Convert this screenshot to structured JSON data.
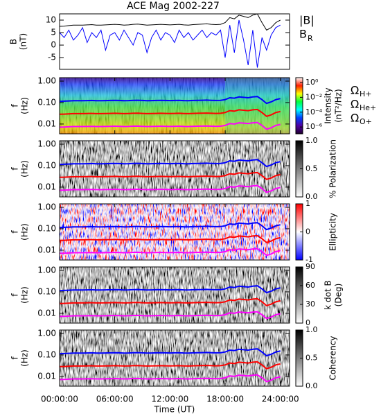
{
  "chart_data": [
    {
      "type": "line",
      "title": "ACE Mag 2002-227",
      "ylabel": [
        "B",
        "(nT)"
      ],
      "x": [
        0,
        0.5,
        1,
        1.5,
        2,
        2.5,
        3,
        3.5,
        4,
        4.5,
        5,
        5.5,
        6,
        6.5,
        7,
        7.5,
        8,
        8.5,
        9,
        9.5,
        10,
        10.5,
        11,
        11.5,
        12,
        12.5,
        13,
        13.5,
        14,
        14.5,
        15,
        15.5,
        16,
        16.5,
        17,
        17.5,
        18,
        18.5,
        19,
        19.5,
        20,
        20.5,
        21,
        21.5,
        22,
        22.5,
        23,
        23.5,
        24
      ],
      "xlim": [
        0,
        25
      ],
      "ylim": [
        -9.7,
        12.5
      ],
      "yticks": [
        10,
        5,
        0,
        -5
      ],
      "series": [
        {
          "name": "|B|",
          "color": "#000000",
          "values": [
            7.5,
            7.6,
            7.8,
            8.0,
            8.0,
            8.0,
            8.1,
            8.2,
            8.0,
            8.0,
            8.1,
            8.2,
            8.3,
            8.2,
            8.0,
            8.1,
            8.3,
            8.4,
            8.2,
            8.0,
            8.1,
            8.2,
            8.3,
            8.2,
            8.1,
            8.2,
            8.3,
            8.1,
            8.0,
            8.2,
            8.3,
            8.4,
            8.5,
            8.3,
            8.2,
            8.3,
            9.0,
            11.0,
            10.5,
            12.0,
            11.5,
            11.0,
            12.0,
            12.5,
            9.0,
            6.0,
            7.0,
            9.0,
            10.0
          ]
        },
        {
          "name": "B",
          "subscript": "R",
          "color": "#0000ff",
          "values": [
            5,
            3,
            6,
            2,
            4,
            7,
            1,
            5,
            3,
            6,
            -2,
            4,
            5,
            2,
            6,
            3,
            0,
            5,
            4,
            -3,
            3,
            6,
            2,
            5,
            4,
            1,
            6,
            3,
            5,
            2,
            4,
            6,
            3,
            5,
            4,
            6,
            -5,
            8,
            -3,
            10,
            2,
            -8,
            6,
            -9,
            3,
            -2,
            4,
            7,
            8
          ]
        }
      ]
    },
    {
      "type": "spectrogram",
      "ylabel": [
        "f",
        "(Hz)"
      ],
      "xlabel": "Time (UT)",
      "x": [
        0,
        0.5,
        1,
        1.5,
        2,
        2.5,
        3,
        3.5,
        4,
        4.5,
        5,
        5.5,
        6,
        6.5,
        7,
        7.5,
        8,
        8.5,
        9,
        9.5,
        10,
        10.5,
        11,
        11.5,
        12,
        12.5,
        13,
        13.5,
        14,
        14.5,
        15,
        15.5,
        16,
        16.5,
        17,
        17.5,
        18,
        18.5,
        19,
        19.5,
        20,
        20.5,
        21,
        21.5,
        22,
        22.5,
        23,
        23.5,
        24
      ],
      "xlim": [
        0,
        25
      ],
      "xticks": [
        {
          "value": 0,
          "label": "00:00:00"
        },
        {
          "value": 6,
          "label": "06:00:00"
        },
        {
          "value": 12,
          "label": "12:00:00"
        },
        {
          "value": 18,
          "label": "18:00:00"
        },
        {
          "value": 24,
          "label": "24:00:00"
        }
      ],
      "ylim": [
        0.0035,
        1.45
      ],
      "log_y": true,
      "yticks": [
        {
          "value": 1,
          "label": "1.00"
        },
        {
          "value": 0.1,
          "label": "0.10"
        },
        0.01
      ],
      "series": [
        {
          "name": "Ω",
          "subscript": "H+",
          "color": "#0000ff",
          "values": [
            0.114,
            0.116,
            0.119,
            0.122,
            0.122,
            0.122,
            0.124,
            0.125,
            0.122,
            0.122,
            0.124,
            0.125,
            0.127,
            0.125,
            0.122,
            0.124,
            0.127,
            0.128,
            0.125,
            0.122,
            0.124,
            0.125,
            0.127,
            0.125,
            0.124,
            0.125,
            0.127,
            0.124,
            0.122,
            0.125,
            0.127,
            0.128,
            0.13,
            0.127,
            0.125,
            0.127,
            0.137,
            0.168,
            0.16,
            0.183,
            0.175,
            0.168,
            0.183,
            0.191,
            0.137,
            0.092,
            0.107,
            0.137,
            0.153
          ]
        },
        {
          "name": "Ω",
          "subscript": "He+",
          "color": "#ff0000",
          "values": [
            0.0286,
            0.029,
            0.0297,
            0.0305,
            0.0305,
            0.0305,
            0.0309,
            0.0313,
            0.0305,
            0.0305,
            0.0309,
            0.0313,
            0.0316,
            0.0313,
            0.0305,
            0.0309,
            0.0316,
            0.032,
            0.0313,
            0.0305,
            0.0309,
            0.0313,
            0.0316,
            0.0313,
            0.0309,
            0.0313,
            0.0316,
            0.0309,
            0.0305,
            0.0313,
            0.0316,
            0.032,
            0.0324,
            0.0316,
            0.0313,
            0.0316,
            0.0343,
            0.0419,
            0.04,
            0.0458,
            0.0438,
            0.0419,
            0.0458,
            0.0477,
            0.0343,
            0.0229,
            0.0267,
            0.0343,
            0.0381
          ]
        },
        {
          "name": "Ω",
          "subscript": "O+",
          "color": "#ff00ff",
          "values": [
            0.00715,
            0.00724,
            0.00743,
            0.00763,
            0.00763,
            0.00763,
            0.00772,
            0.00781,
            0.00763,
            0.00763,
            0.00772,
            0.00781,
            0.00791,
            0.00781,
            0.00763,
            0.00772,
            0.00791,
            0.008,
            0.00781,
            0.00763,
            0.00772,
            0.00781,
            0.00791,
            0.00781,
            0.00772,
            0.00781,
            0.00791,
            0.00772,
            0.00763,
            0.00781,
            0.00791,
            0.008,
            0.0081,
            0.00791,
            0.00781,
            0.00791,
            0.00858,
            0.0105,
            0.01,
            0.0114,
            0.011,
            0.0105,
            0.0114,
            0.0119,
            0.00858,
            0.00572,
            0.00667,
            0.00858,
            0.00953
          ]
        }
      ],
      "panels": [
        {
          "colorbar_label": [
            "Intensity",
            "(nT²/Hz)"
          ],
          "log_c": true,
          "legend": true,
          "clim": [
            1.2e-07,
            4.5
          ],
          "cticks": [
            {
              "value": 1,
              "label": "10⁰"
            },
            {
              "value": 0.01,
              "label": "10⁻²"
            },
            {
              "value": 0.0001,
              "label": "10⁻⁴"
            },
            {
              "value": 1e-06,
              "label": "10⁻⁶"
            }
          ],
          "colormap": [
            "#ffffff",
            "#ff2000",
            "#ffff00",
            "#00ff40",
            "#00ffff",
            "#0040ff",
            "#5000a0",
            "#200030"
          ]
        },
        {
          "colorbar_label": [
            "% Polarization"
          ],
          "clim": [
            0,
            1
          ],
          "cticks": [
            {
              "value": 1,
              "label": "1.0"
            },
            0.5,
            {
              "value": 0,
              "label": "0.0"
            }
          ],
          "colormap": [
            "#000000",
            "#ffffff"
          ]
        },
        {
          "colorbar_label": [
            "Ellipticity"
          ],
          "clim": [
            -1,
            1
          ],
          "cticks": [
            1,
            0,
            -1
          ],
          "colormap": [
            "#ff0000",
            "#ffffff",
            "#0000ff"
          ]
        },
        {
          "colorbar_label": [
            "k dot B",
            "(Deg)"
          ],
          "clim": [
            0,
            90
          ],
          "cticks": [
            90,
            60,
            30,
            0
          ],
          "colormap": [
            "#000000",
            "#ffffff"
          ]
        },
        {
          "colorbar_label": [
            "Coherency"
          ],
          "clim": [
            0,
            1
          ],
          "cticks": [
            {
              "value": 1,
              "label": "1.0"
            },
            0.5,
            {
              "value": 0,
              "label": "0.0"
            }
          ],
          "colormap": [
            "#000000",
            "#ffffff"
          ]
        }
      ]
    }
  ]
}
